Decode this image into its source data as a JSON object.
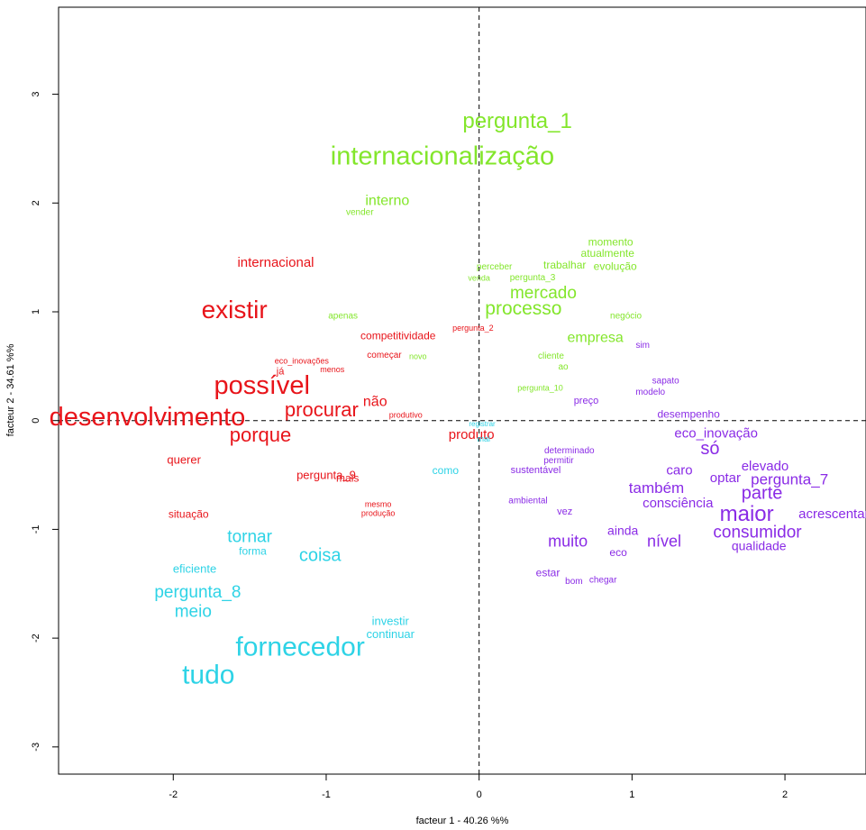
{
  "chart_data": {
    "type": "scatter",
    "title": "",
    "xlabel": "facteur  1  - 40.26 %%",
    "ylabel": "facteur  2  - 34.61 %%",
    "xlim": [
      -2.75,
      2.53
    ],
    "ylim": [
      -3.25,
      3.8
    ],
    "xticks": [
      "-2",
      "-1",
      "0",
      "1",
      "2"
    ],
    "xtick_values": [
      -2,
      -1,
      0,
      1,
      2
    ],
    "yticks": [
      "-3",
      "-2",
      "-1",
      "0",
      "1",
      "2",
      "3"
    ],
    "ytick_values": [
      -3,
      -2,
      -1,
      0,
      1,
      2,
      3
    ],
    "grid": false,
    "reference_lines": {
      "x": 0,
      "y": 0,
      "style": "dashed"
    },
    "colors": {
      "green": "#83e62b",
      "red": "#e8141a",
      "cyan": "#2ed3e6",
      "purple": "#8a2be6"
    },
    "series": [
      {
        "color": "green",
        "points": [
          {
            "label": "pergunta_1",
            "x": 0.25,
            "y": 2.75,
            "size": 24
          },
          {
            "label": "internacionalização",
            "x": -0.24,
            "y": 2.43,
            "size": 29
          },
          {
            "label": "interno",
            "x": -0.6,
            "y": 2.02,
            "size": 16
          },
          {
            "label": "vender",
            "x": -0.78,
            "y": 1.91,
            "size": 10
          },
          {
            "label": "momento",
            "x": 0.86,
            "y": 1.64,
            "size": 12
          },
          {
            "label": "atualmente",
            "x": 0.84,
            "y": 1.54,
            "size": 12
          },
          {
            "label": "trabalhar",
            "x": 0.56,
            "y": 1.43,
            "size": 12
          },
          {
            "label": "evolução",
            "x": 0.89,
            "y": 1.42,
            "size": 12
          },
          {
            "label": "perceber",
            "x": 0.1,
            "y": 1.41,
            "size": 10
          },
          {
            "label": "venda",
            "x": 0.0,
            "y": 1.31,
            "size": 9
          },
          {
            "label": "pergunta_3",
            "x": 0.35,
            "y": 1.31,
            "size": 10
          },
          {
            "label": "mercado",
            "x": 0.42,
            "y": 1.17,
            "size": 19
          },
          {
            "label": "processo",
            "x": 0.29,
            "y": 1.03,
            "size": 21
          },
          {
            "label": "apenas",
            "x": -0.89,
            "y": 0.96,
            "size": 10
          },
          {
            "label": "negócio",
            "x": 0.96,
            "y": 0.96,
            "size": 10
          },
          {
            "label": "empresa",
            "x": 0.76,
            "y": 0.76,
            "size": 16
          },
          {
            "label": "novo",
            "x": -0.4,
            "y": 0.59,
            "size": 9
          },
          {
            "label": "cliente",
            "x": 0.47,
            "y": 0.59,
            "size": 10
          },
          {
            "label": "ao",
            "x": 0.55,
            "y": 0.49,
            "size": 10
          },
          {
            "label": "pergunta_10",
            "x": 0.4,
            "y": 0.3,
            "size": 9
          }
        ]
      },
      {
        "color": "red",
        "points": [
          {
            "label": "internacional",
            "x": -1.33,
            "y": 1.45,
            "size": 15
          },
          {
            "label": "existir",
            "x": -1.6,
            "y": 1.02,
            "size": 28
          },
          {
            "label": "competitividade",
            "x": -0.53,
            "y": 0.78,
            "size": 12
          },
          {
            "label": "pergunta_2",
            "x": -0.04,
            "y": 0.85,
            "size": 9
          },
          {
            "label": "eco_inovações",
            "x": -1.16,
            "y": 0.55,
            "size": 9
          },
          {
            "label": "já",
            "x": -1.3,
            "y": 0.45,
            "size": 11
          },
          {
            "label": "menos",
            "x": -0.96,
            "y": 0.47,
            "size": 9
          },
          {
            "label": "começar",
            "x": -0.62,
            "y": 0.6,
            "size": 10
          },
          {
            "label": "possível",
            "x": -1.42,
            "y": 0.32,
            "size": 29
          },
          {
            "label": "não",
            "x": -0.68,
            "y": 0.17,
            "size": 16
          },
          {
            "label": "procurar",
            "x": -1.03,
            "y": 0.1,
            "size": 22
          },
          {
            "label": "produtivo",
            "x": -0.48,
            "y": 0.05,
            "size": 9
          },
          {
            "label": "desenvolvimento",
            "x": -2.17,
            "y": 0.03,
            "size": 29
          },
          {
            "label": "porque",
            "x": -1.43,
            "y": -0.13,
            "size": 22
          },
          {
            "label": "produto",
            "x": -0.05,
            "y": -0.13,
            "size": 15
          },
          {
            "label": "querer",
            "x": -1.93,
            "y": -0.36,
            "size": 13
          },
          {
            "label": "pergunta_9",
            "x": -1.0,
            "y": -0.5,
            "size": 13
          },
          {
            "label": "mais",
            "x": -0.86,
            "y": -0.53,
            "size": 12
          },
          {
            "label": "mesmo",
            "x": -0.66,
            "y": -0.77,
            "size": 9
          },
          {
            "label": "produção",
            "x": -0.66,
            "y": -0.85,
            "size": 9
          },
          {
            "label": "situação",
            "x": -1.9,
            "y": -0.86,
            "size": 12
          }
        ]
      },
      {
        "color": "cyan",
        "points": [
          {
            "label": "registrar",
            "x": 0.02,
            "y": -0.03,
            "size": 8
          },
          {
            "label": "mal",
            "x": 0.03,
            "y": -0.17,
            "size": 9
          },
          {
            "label": "como",
            "x": -0.22,
            "y": -0.46,
            "size": 12
          },
          {
            "label": "tornar",
            "x": -1.5,
            "y": -1.07,
            "size": 19
          },
          {
            "label": "forma",
            "x": -1.48,
            "y": -1.2,
            "size": 12
          },
          {
            "label": "coisa",
            "x": -1.04,
            "y": -1.24,
            "size": 20
          },
          {
            "label": "eficiente",
            "x": -1.86,
            "y": -1.36,
            "size": 13
          },
          {
            "label": "pergunta_8",
            "x": -1.84,
            "y": -1.58,
            "size": 19
          },
          {
            "label": "meio",
            "x": -1.87,
            "y": -1.76,
            "size": 19
          },
          {
            "label": "investir",
            "x": -0.58,
            "y": -1.84,
            "size": 13
          },
          {
            "label": "continuar",
            "x": -0.58,
            "y": -1.96,
            "size": 13
          },
          {
            "label": "fornecedor",
            "x": -1.17,
            "y": -2.08,
            "size": 30
          },
          {
            "label": "tudo",
            "x": -1.77,
            "y": -2.34,
            "size": 30
          }
        ]
      },
      {
        "color": "purple",
        "points": [
          {
            "label": "sim",
            "x": 1.07,
            "y": 0.69,
            "size": 10
          },
          {
            "label": "sapato",
            "x": 1.22,
            "y": 0.36,
            "size": 10
          },
          {
            "label": "modelo",
            "x": 1.12,
            "y": 0.26,
            "size": 10
          },
          {
            "label": "preço",
            "x": 0.7,
            "y": 0.18,
            "size": 11
          },
          {
            "label": "desempenho",
            "x": 1.37,
            "y": 0.06,
            "size": 12
          },
          {
            "label": "eco_inovação",
            "x": 1.55,
            "y": -0.12,
            "size": 15
          },
          {
            "label": "só",
            "x": 1.51,
            "y": -0.26,
            "size": 20
          },
          {
            "label": "determinado",
            "x": 0.59,
            "y": -0.28,
            "size": 10
          },
          {
            "label": "permitir",
            "x": 0.52,
            "y": -0.37,
            "size": 10
          },
          {
            "label": "sustentável",
            "x": 0.37,
            "y": -0.46,
            "size": 11
          },
          {
            "label": "caro",
            "x": 1.31,
            "y": -0.46,
            "size": 15
          },
          {
            "label": "elevado",
            "x": 1.87,
            "y": -0.42,
            "size": 15
          },
          {
            "label": "optar",
            "x": 1.61,
            "y": -0.53,
            "size": 15
          },
          {
            "label": "pergunta_7",
            "x": 2.03,
            "y": -0.54,
            "size": 17
          },
          {
            "label": "também",
            "x": 1.16,
            "y": -0.62,
            "size": 17
          },
          {
            "label": "parte",
            "x": 1.85,
            "y": -0.67,
            "size": 20
          },
          {
            "label": "consciência",
            "x": 1.3,
            "y": -0.76,
            "size": 15
          },
          {
            "label": "ambiental",
            "x": 0.32,
            "y": -0.74,
            "size": 10
          },
          {
            "label": "vez",
            "x": 0.56,
            "y": -0.84,
            "size": 11
          },
          {
            "label": "maior",
            "x": 1.75,
            "y": -0.86,
            "size": 24
          },
          {
            "label": "acrescentar",
            "x": 2.32,
            "y": -0.86,
            "size": 15
          },
          {
            "label": "ainda",
            "x": 0.94,
            "y": -1.01,
            "size": 14
          },
          {
            "label": "consumidor",
            "x": 1.82,
            "y": -1.03,
            "size": 19
          },
          {
            "label": "muito",
            "x": 0.58,
            "y": -1.11,
            "size": 18
          },
          {
            "label": "nível",
            "x": 1.21,
            "y": -1.11,
            "size": 18
          },
          {
            "label": "qualidade",
            "x": 1.83,
            "y": -1.15,
            "size": 14
          },
          {
            "label": "eco",
            "x": 0.91,
            "y": -1.21,
            "size": 12
          },
          {
            "label": "estar",
            "x": 0.45,
            "y": -1.4,
            "size": 12
          },
          {
            "label": "bom",
            "x": 0.62,
            "y": -1.48,
            "size": 10
          },
          {
            "label": "chegar",
            "x": 0.81,
            "y": -1.47,
            "size": 10
          }
        ]
      }
    ]
  }
}
